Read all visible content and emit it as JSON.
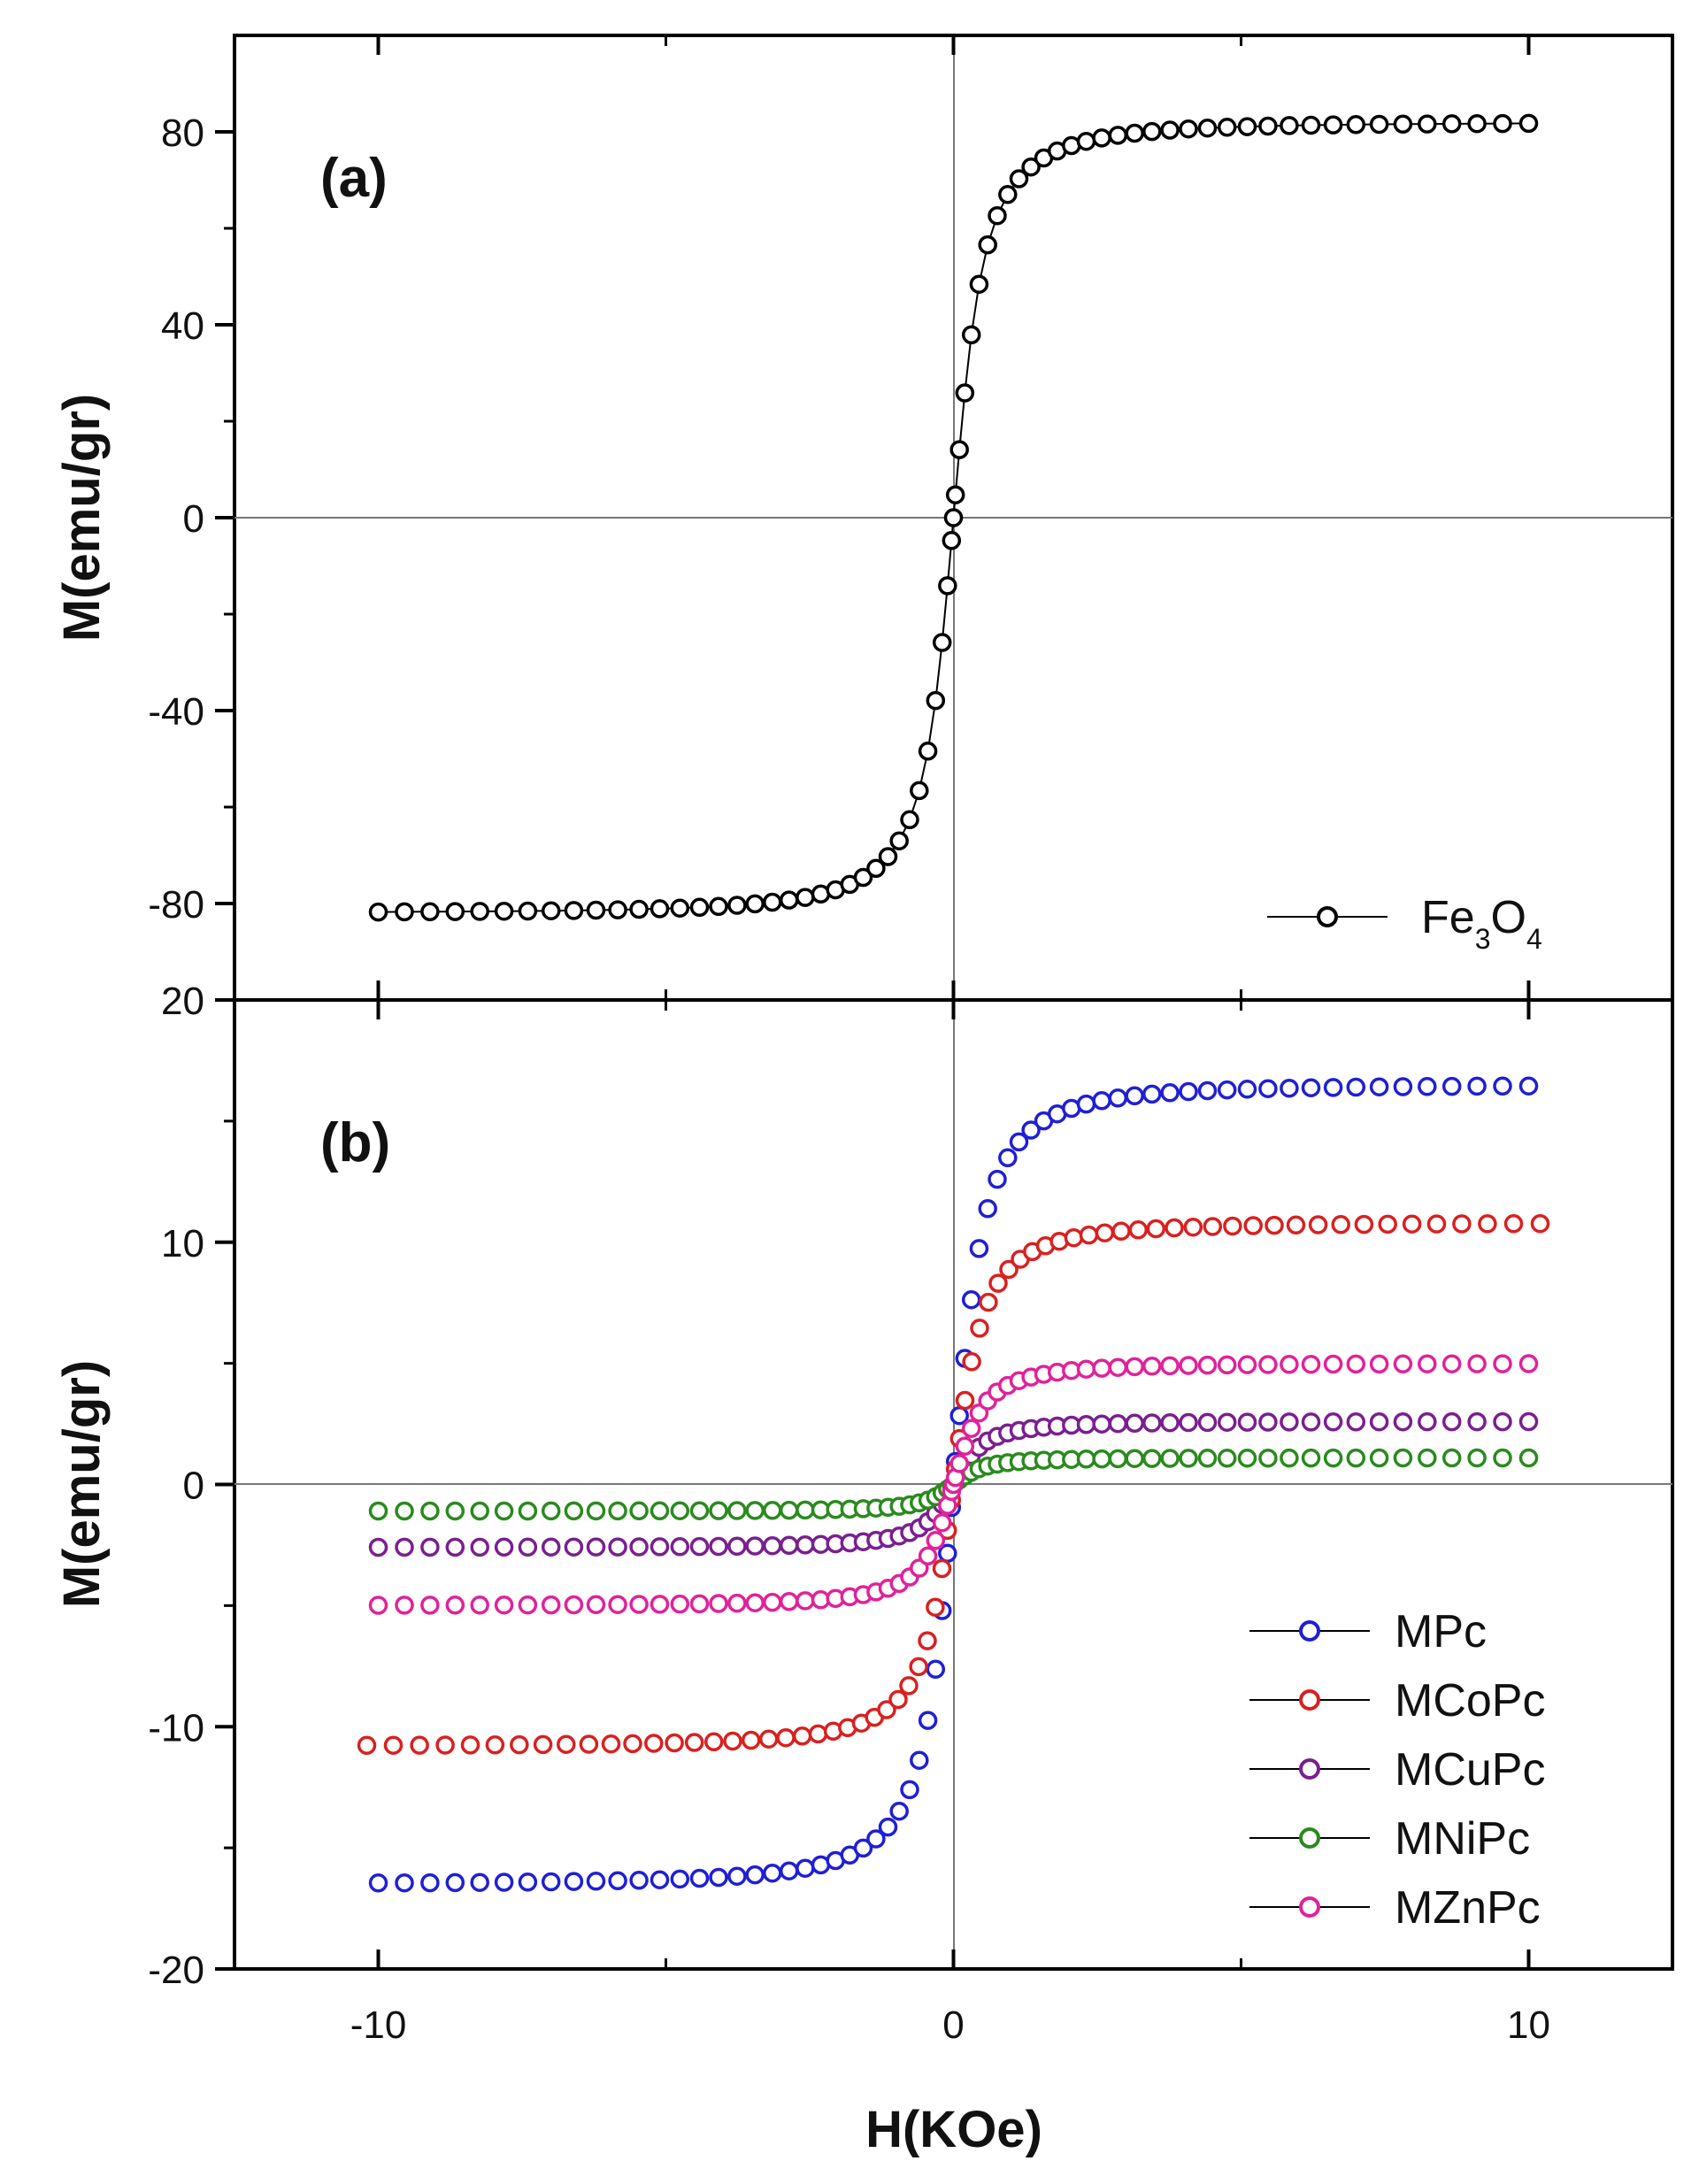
{
  "chart_data": [
    {
      "type": "scatter",
      "panel_label": "(a)",
      "xlabel": "H(KOe)",
      "ylabel": "M(emu/gr)",
      "xlim": [
        -12.5,
        12.5
      ],
      "ylim": [
        -100,
        100
      ],
      "x_ticks": [
        -10,
        0,
        10
      ],
      "y_ticks": [
        {
          "value": 80,
          "label": "80"
        },
        {
          "value": 40,
          "label": "40"
        },
        {
          "value": 0,
          "label": "0"
        },
        {
          "value": -40,
          "label": "-40"
        },
        {
          "value": -80,
          "label": "-80"
        }
      ],
      "legend_position": "bottom-right",
      "series": [
        {
          "name": "Fe3O4",
          "legend_parts": {
            "base": "Fe",
            "sub1": "3",
            "mid": "O",
            "sub2": "4"
          },
          "color": "#000000",
          "x_range": [
            -10,
            10
          ],
          "saturation_ms": 82,
          "shape_k": 2.5,
          "points_per_branch": 70
        }
      ]
    },
    {
      "type": "scatter",
      "panel_label": "(b)",
      "xlabel": "H(KOe)",
      "ylabel": "M(emu/gr)",
      "xlim": [
        -12.5,
        12.5
      ],
      "ylim": [
        -20,
        20
      ],
      "x_ticks": [
        {
          "value": -10,
          "label": "-10"
        },
        {
          "value": 0,
          "label": "0"
        },
        {
          "value": 10,
          "label": "10"
        }
      ],
      "y_ticks": [
        {
          "value": 20,
          "label": "20"
        },
        {
          "value": 10,
          "label": "10"
        },
        {
          "value": 0,
          "label": "0"
        },
        {
          "value": -10,
          "label": "-10"
        },
        {
          "value": -20,
          "label": "-20"
        }
      ],
      "legend_position": "bottom-right",
      "series": [
        {
          "name": "MPc",
          "color": "#1f1fd6",
          "x_range": [
            -10,
            10
          ],
          "saturation_ms": 16.5,
          "shape_k": 2.5,
          "points_per_branch": 70
        },
        {
          "name": "MCoPc",
          "color": "#d92020",
          "x_range": [
            -10.2,
            10.2
          ],
          "saturation_ms": 10.8,
          "shape_k": 2.5,
          "points_per_branch": 70
        },
        {
          "name": "MCuPc",
          "color": "#7a1f8f",
          "x_range": [
            -10,
            10
          ],
          "saturation_ms": 2.6,
          "shape_k": 2.5,
          "points_per_branch": 70
        },
        {
          "name": "MNiPc",
          "color": "#2a8a1e",
          "x_range": [
            -10,
            10
          ],
          "saturation_ms": 1.1,
          "shape_k": 2.5,
          "points_per_branch": 70
        },
        {
          "name": "MZnPc",
          "color": "#e0229a",
          "x_range": [
            -10,
            10
          ],
          "saturation_ms": 5.0,
          "shape_k": 2.5,
          "points_per_branch": 70
        }
      ]
    }
  ]
}
